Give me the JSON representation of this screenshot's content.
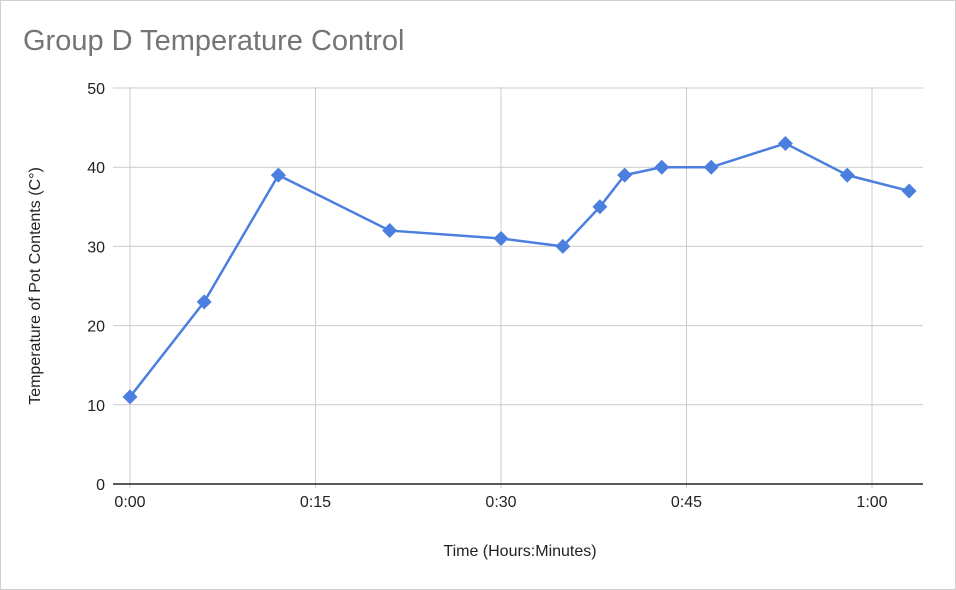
{
  "chart_data": {
    "type": "line",
    "title": "Group D Temperature Control",
    "xlabel": "Time (Hours:Minutes)",
    "ylabel": "Temperature of Pot Contents (C°)",
    "x_unit": "minutes",
    "xlim": [
      0,
      64
    ],
    "ylim": [
      0,
      50
    ],
    "x_ticks": [
      {
        "value": 0,
        "label": "0:00"
      },
      {
        "value": 15,
        "label": "0:15"
      },
      {
        "value": 30,
        "label": "0:30"
      },
      {
        "value": 45,
        "label": "0:45"
      },
      {
        "value": 60,
        "label": "1:00"
      }
    ],
    "y_ticks": [
      {
        "value": 0,
        "label": "0"
      },
      {
        "value": 10,
        "label": "10"
      },
      {
        "value": 20,
        "label": "20"
      },
      {
        "value": 30,
        "label": "30"
      },
      {
        "value": 40,
        "label": "40"
      },
      {
        "value": 50,
        "label": "50"
      }
    ],
    "grid": true,
    "legend": "none",
    "series": [
      {
        "color": "#4a7fe0",
        "marker": "diamond",
        "x": [
          0,
          6,
          12,
          21,
          30,
          35,
          38,
          40,
          43,
          47,
          53,
          58,
          63
        ],
        "y": [
          11,
          23,
          39,
          32,
          31,
          30,
          35,
          39,
          40,
          40,
          43,
          39,
          37
        ]
      }
    ]
  }
}
